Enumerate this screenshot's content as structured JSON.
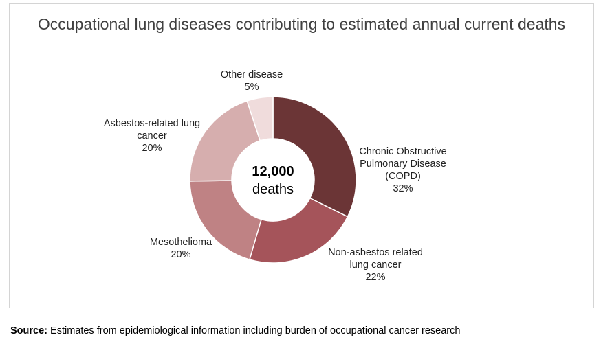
{
  "chart_data": {
    "type": "pie",
    "title": "Occupational lung diseases contributing to estimated annual current deaths",
    "center_label": [
      "12,000",
      "deaths"
    ],
    "slices": [
      {
        "label": [
          "Chronic Obstructive",
          "Pulmonary Disease",
          "(COPD)"
        ],
        "value": 32,
        "value_label": "32%",
        "color": "#6b3536"
      },
      {
        "label": [
          "Non-asbestos related",
          "lung cancer"
        ],
        "value": 22,
        "value_label": "22%",
        "color": "#a5545a"
      },
      {
        "label": [
          "Mesothelioma"
        ],
        "value": 20,
        "value_label": "20%",
        "color": "#bf8284"
      },
      {
        "label": [
          "Asbestos-related lung",
          "cancer"
        ],
        "value": 20,
        "value_label": "20%",
        "color": "#d6aeae"
      },
      {
        "label": [
          "Other disease"
        ],
        "value": 5,
        "value_label": "5%",
        "color": "#f0dcdc"
      }
    ]
  },
  "source": {
    "prefix": "Source:",
    "text": " Estimates from epidemiological information including burden of occupational cancer research"
  }
}
